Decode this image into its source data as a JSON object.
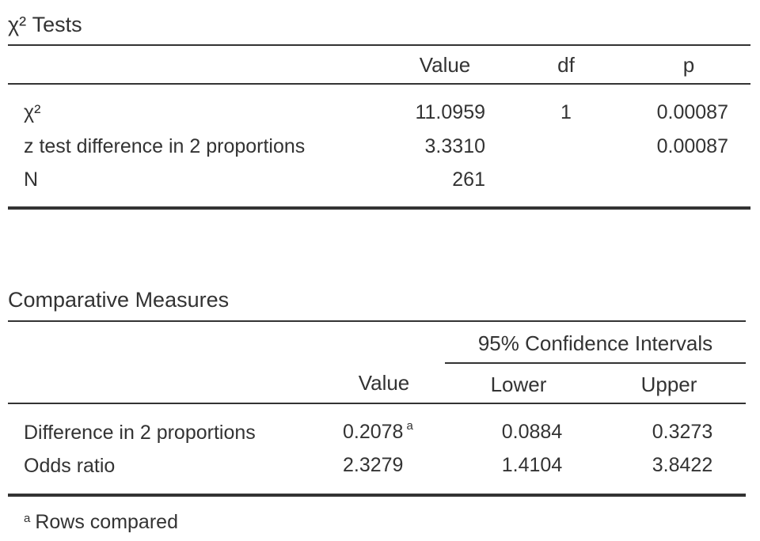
{
  "chi_tests": {
    "title": "χ² Tests",
    "headers": {
      "value": "Value",
      "df": "df",
      "p": "p"
    },
    "rows": [
      {
        "label": "χ²",
        "value": "11.0959",
        "df": "1",
        "p": "0.00087"
      },
      {
        "label": "z test difference in 2 proportions",
        "value": "3.3310",
        "df": "",
        "p": "0.00087"
      },
      {
        "label": "N",
        "value": "261",
        "df": "",
        "p": ""
      }
    ]
  },
  "comparative": {
    "title": "Comparative Measures",
    "ci_header": "95% Confidence Intervals",
    "headers": {
      "value": "Value",
      "lower": "Lower",
      "upper": "Upper"
    },
    "rows": [
      {
        "label": "Difference in 2 proportions",
        "value": "0.2078",
        "note": "a",
        "lower": "0.0884",
        "upper": "0.3273"
      },
      {
        "label": "Odds ratio",
        "value": "2.3279",
        "note": "",
        "lower": "1.4104",
        "upper": "3.8422"
      }
    ],
    "footnote_mark": "a",
    "footnote_text": "Rows compared"
  }
}
